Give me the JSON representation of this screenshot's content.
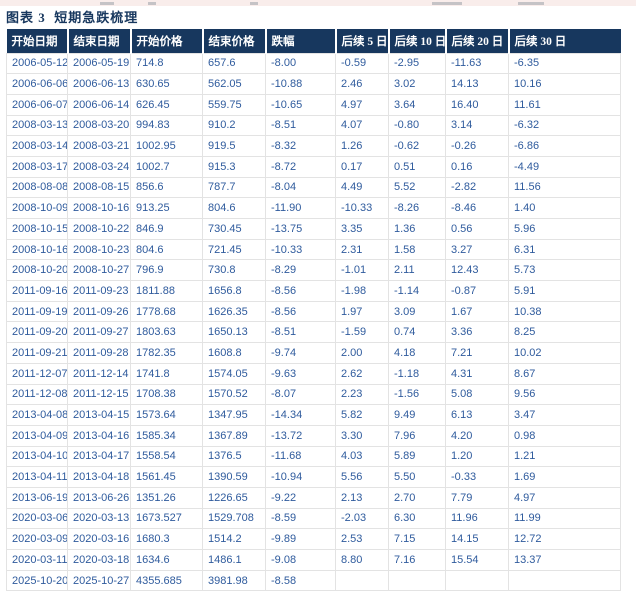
{
  "title": "图表 3  短期急跌梳理",
  "colors": {
    "header_bg": "#17375E",
    "header_text": "#FFFFFF",
    "cell_text": "#2F5B9D",
    "title_text": "#17375E",
    "body_border": "#E3E3E3",
    "top_strip": "#F9EDEB"
  },
  "table": {
    "headers": [
      "开始日期",
      "结束日期",
      "开始价格",
      "结束价格",
      "跌幅",
      "后续 5 日",
      "后续 10 日",
      "后续 20 日",
      "后续 30 日"
    ],
    "rows": [
      [
        "2006-05-12",
        "2006-05-19",
        "714.8",
        "657.6",
        "-8.00",
        "-0.59",
        "-2.95",
        "-11.63",
        "-6.35"
      ],
      [
        "2006-06-06",
        "2006-06-13",
        "630.65",
        "562.05",
        "-10.88",
        "2.46",
        "3.02",
        "14.13",
        "10.16"
      ],
      [
        "2006-06-07",
        "2006-06-14",
        "626.45",
        "559.75",
        "-10.65",
        "4.97",
        "3.64",
        "16.40",
        "11.61"
      ],
      [
        "2008-03-13",
        "2008-03-20",
        "994.83",
        "910.2",
        "-8.51",
        "4.07",
        "-0.80",
        "3.14",
        "-6.32"
      ],
      [
        "2008-03-14",
        "2008-03-21",
        "1002.95",
        "919.5",
        "-8.32",
        "1.26",
        "-0.62",
        "-0.26",
        "-6.86"
      ],
      [
        "2008-03-17",
        "2008-03-24",
        "1002.7",
        "915.3",
        "-8.72",
        "0.17",
        "0.51",
        "0.16",
        "-4.49"
      ],
      [
        "2008-08-08",
        "2008-08-15",
        "856.6",
        "787.7",
        "-8.04",
        "4.49",
        "5.52",
        "-2.82",
        "11.56"
      ],
      [
        "2008-10-09",
        "2008-10-16",
        "913.25",
        "804.6",
        "-11.90",
        "-10.33",
        "-8.26",
        "-8.46",
        "1.40"
      ],
      [
        "2008-10-15",
        "2008-10-22",
        "846.9",
        "730.45",
        "-13.75",
        "3.35",
        "1.36",
        "0.56",
        "5.96"
      ],
      [
        "2008-10-16",
        "2008-10-23",
        "804.6",
        "721.45",
        "-10.33",
        "2.31",
        "1.58",
        "3.27",
        "6.31"
      ],
      [
        "2008-10-20",
        "2008-10-27",
        "796.9",
        "730.8",
        "-8.29",
        "-1.01",
        "2.11",
        "12.43",
        "5.73"
      ],
      [
        "2011-09-16",
        "2011-09-23",
        "1811.88",
        "1656.8",
        "-8.56",
        "-1.98",
        "-1.14",
        "-0.87",
        "5.91"
      ],
      [
        "2011-09-19",
        "2011-09-26",
        "1778.68",
        "1626.35",
        "-8.56",
        "1.97",
        "3.09",
        "1.67",
        "10.38"
      ],
      [
        "2011-09-20",
        "2011-09-27",
        "1803.63",
        "1650.13",
        "-8.51",
        "-1.59",
        "0.74",
        "3.36",
        "8.25"
      ],
      [
        "2011-09-21",
        "2011-09-28",
        "1782.35",
        "1608.8",
        "-9.74",
        "2.00",
        "4.18",
        "7.21",
        "10.02"
      ],
      [
        "2011-12-07",
        "2011-12-14",
        "1741.8",
        "1574.05",
        "-9.63",
        "2.62",
        "-1.18",
        "4.31",
        "8.67"
      ],
      [
        "2011-12-08",
        "2011-12-15",
        "1708.38",
        "1570.52",
        "-8.07",
        "2.23",
        "-1.56",
        "5.08",
        "9.56"
      ],
      [
        "2013-04-08",
        "2013-04-15",
        "1573.64",
        "1347.95",
        "-14.34",
        "5.82",
        "9.49",
        "6.13",
        "3.47"
      ],
      [
        "2013-04-09",
        "2013-04-16",
        "1585.34",
        "1367.89",
        "-13.72",
        "3.30",
        "7.96",
        "4.20",
        "0.98"
      ],
      [
        "2013-04-10",
        "2013-04-17",
        "1558.54",
        "1376.5",
        "-11.68",
        "4.03",
        "5.89",
        "1.20",
        "1.21"
      ],
      [
        "2013-04-11",
        "2013-04-18",
        "1561.45",
        "1390.59",
        "-10.94",
        "5.56",
        "5.50",
        "-0.33",
        "1.69"
      ],
      [
        "2013-06-19",
        "2013-06-26",
        "1351.26",
        "1226.65",
        "-9.22",
        "2.13",
        "2.70",
        "7.79",
        "4.97"
      ],
      [
        "2020-03-06",
        "2020-03-13",
        "1673.527",
        "1529.708",
        "-8.59",
        "-2.03",
        "6.30",
        "11.96",
        "11.99"
      ],
      [
        "2020-03-09",
        "2020-03-16",
        "1680.3",
        "1514.2",
        "-9.89",
        "2.53",
        "7.15",
        "14.15",
        "12.72"
      ],
      [
        "2020-03-11",
        "2020-03-18",
        "1634.6",
        "1486.1",
        "-9.08",
        "8.80",
        "7.16",
        "15.54",
        "13.37"
      ],
      [
        "2025-10-20",
        "2025-10-27",
        "4355.685",
        "3981.98",
        "-8.58",
        "",
        "",
        "",
        ""
      ]
    ]
  }
}
